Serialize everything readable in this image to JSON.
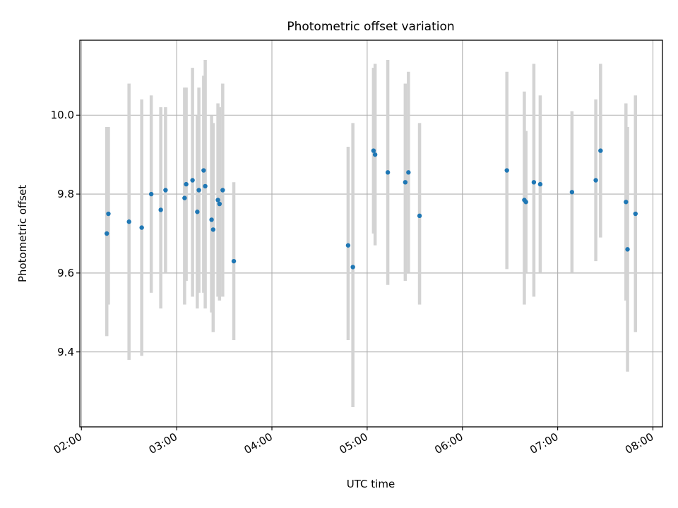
{
  "chart_data": {
    "type": "scatter",
    "title": "Photometric offset variation",
    "xlabel": "UTC time",
    "ylabel": "Photometric offset",
    "x_axis": {
      "kind": "time",
      "range": [
        "01:59",
        "08:06"
      ],
      "ticks": [
        "02:00",
        "03:00",
        "04:00",
        "05:00",
        "06:00",
        "07:00",
        "08:00"
      ]
    },
    "y_axis": {
      "range": [
        9.21,
        10.19
      ],
      "ticks": [
        9.4,
        9.6,
        9.8,
        10.0
      ],
      "tick_labels": [
        "9.4",
        "9.6",
        "9.8",
        "10.0"
      ]
    },
    "grid": true,
    "point_color": "#1f77b4",
    "errorbar_color": "#d3d3d3",
    "series": [
      {
        "points": [
          {
            "t": "02:16",
            "y": 9.7,
            "lo": 9.44,
            "hi": 9.97
          },
          {
            "t": "02:17",
            "y": 9.75,
            "lo": 9.52,
            "hi": 9.97
          },
          {
            "t": "02:30",
            "y": 9.73,
            "lo": 9.38,
            "hi": 10.08
          },
          {
            "t": "02:38",
            "y": 9.715,
            "lo": 9.39,
            "hi": 10.04
          },
          {
            "t": "02:44",
            "y": 9.8,
            "lo": 9.55,
            "hi": 10.05
          },
          {
            "t": "02:50",
            "y": 9.76,
            "lo": 9.51,
            "hi": 10.02
          },
          {
            "t": "02:53",
            "y": 9.81,
            "lo": 9.6,
            "hi": 10.02
          },
          {
            "t": "03:05",
            "y": 9.79,
            "lo": 9.52,
            "hi": 10.07
          },
          {
            "t": "03:06",
            "y": 9.825,
            "lo": 9.58,
            "hi": 10.07
          },
          {
            "t": "03:10",
            "y": 9.835,
            "lo": 9.54,
            "hi": 10.12
          },
          {
            "t": "03:13",
            "y": 9.755,
            "lo": 9.51,
            "hi": 10.0
          },
          {
            "t": "03:14",
            "y": 9.81,
            "lo": 9.55,
            "hi": 10.07
          },
          {
            "t": "03:17",
            "y": 9.86,
            "lo": 9.55,
            "hi": 10.1
          },
          {
            "t": "03:18",
            "y": 9.82,
            "lo": 9.51,
            "hi": 10.14
          },
          {
            "t": "03:22",
            "y": 9.735,
            "lo": 9.5,
            "hi": 10.0
          },
          {
            "t": "03:23",
            "y": 9.71,
            "lo": 9.45,
            "hi": 9.98
          },
          {
            "t": "03:26",
            "y": 9.785,
            "lo": 9.54,
            "hi": 10.03
          },
          {
            "t": "03:27",
            "y": 9.775,
            "lo": 9.53,
            "hi": 10.02
          },
          {
            "t": "03:29",
            "y": 9.81,
            "lo": 9.54,
            "hi": 10.08
          },
          {
            "t": "03:36",
            "y": 9.63,
            "lo": 9.43,
            "hi": 9.83
          },
          {
            "t": "04:48",
            "y": 9.67,
            "lo": 9.43,
            "hi": 9.92
          },
          {
            "t": "04:51",
            "y": 9.615,
            "lo": 9.26,
            "hi": 9.98
          },
          {
            "t": "05:04",
            "y": 9.91,
            "lo": 9.7,
            "hi": 10.12
          },
          {
            "t": "05:05",
            "y": 9.9,
            "lo": 9.67,
            "hi": 10.13
          },
          {
            "t": "05:13",
            "y": 9.855,
            "lo": 9.57,
            "hi": 10.14
          },
          {
            "t": "05:24",
            "y": 9.83,
            "lo": 9.58,
            "hi": 10.08
          },
          {
            "t": "05:26",
            "y": 9.855,
            "lo": 9.6,
            "hi": 10.11
          },
          {
            "t": "05:33",
            "y": 9.745,
            "lo": 9.52,
            "hi": 9.98
          },
          {
            "t": "06:28",
            "y": 9.86,
            "lo": 9.61,
            "hi": 10.11
          },
          {
            "t": "06:39",
            "y": 9.785,
            "lo": 9.52,
            "hi": 10.06
          },
          {
            "t": "06:40",
            "y": 9.78,
            "lo": 9.6,
            "hi": 9.96
          },
          {
            "t": "06:45",
            "y": 9.83,
            "lo": 9.54,
            "hi": 10.13
          },
          {
            "t": "06:49",
            "y": 9.825,
            "lo": 9.6,
            "hi": 10.05
          },
          {
            "t": "07:09",
            "y": 9.805,
            "lo": 9.6,
            "hi": 10.01
          },
          {
            "t": "07:24",
            "y": 9.835,
            "lo": 9.63,
            "hi": 10.04
          },
          {
            "t": "07:27",
            "y": 9.91,
            "lo": 9.69,
            "hi": 10.13
          },
          {
            "t": "07:43",
            "y": 9.78,
            "lo": 9.53,
            "hi": 10.03
          },
          {
            "t": "07:44",
            "y": 9.66,
            "lo": 9.35,
            "hi": 9.97
          },
          {
            "t": "07:49",
            "y": 9.75,
            "lo": 9.45,
            "hi": 10.05
          }
        ]
      }
    ]
  }
}
